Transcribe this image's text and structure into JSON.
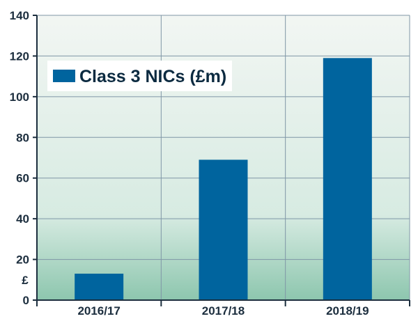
{
  "chart_data": {
    "type": "bar",
    "categories": [
      "2016/17",
      "2017/18",
      "2018/19"
    ],
    "series": [
      {
        "name": "Class 3 NICs (£m)",
        "values": [
          13,
          69,
          119
        ]
      }
    ],
    "ylim": [
      0,
      140
    ],
    "yticks": [
      0,
      20,
      40,
      60,
      80,
      100,
      120,
      140
    ],
    "y_unit_label": "£",
    "grid": true,
    "legend_position": "top-left",
    "colors": {
      "bar": "#00649e",
      "grid": "#7f96a6",
      "axis": "#1c2e3e",
      "bg_top": "#f2f6f3",
      "bg_bottom": "#8dc6ae"
    }
  }
}
